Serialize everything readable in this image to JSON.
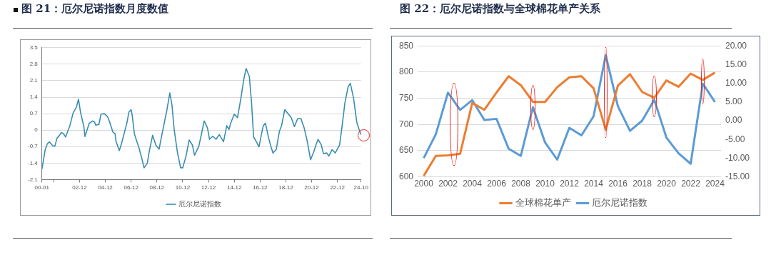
{
  "chart_data": [
    {
      "type": "line",
      "title": "图 21：厄尔尼诺指数月度数值",
      "x": [
        "2000-01",
        "2000-04",
        "2000-06",
        "2000-08",
        "2000-11",
        "2001-01",
        "2001-03",
        "2001-05",
        "2001-07",
        "2001-09",
        "2001-11",
        "2002-01",
        "2002-03",
        "2002-06",
        "2002-09",
        "2002-11",
        "2003-01",
        "2003-04",
        "2003-05",
        "2003-08",
        "2003-09",
        "2003-12",
        "2004-02",
        "2004-03",
        "2004-06",
        "2004-08",
        "2004-11",
        "2005-02",
        "2005-04",
        "2005-07",
        "2005-09",
        "2005-10",
        "2006-01",
        "2006-03",
        "2006-06",
        "2006-08",
        "2006-10",
        "2006-12",
        "2007-01",
        "2007-03",
        "2007-05",
        "2007-07",
        "2007-10",
        "2007-12",
        "2008-03",
        "2008-05",
        "2008-08",
        "2008-11",
        "2009-02",
        "2009-04",
        "2009-07",
        "2009-09",
        "2009-12",
        "2010-02",
        "2010-04",
        "2010-07",
        "2010-10",
        "2010-12",
        "2011-03",
        "2011-06",
        "2011-09",
        "2011-11",
        "2012-03",
        "2012-05",
        "2012-08",
        "2012-11",
        "2013-01",
        "2013-04",
        "2013-07",
        "2013-10",
        "2014-02",
        "2014-05",
        "2014-07",
        "2014-09",
        "2014-12",
        "2015-03",
        "2015-06",
        "2015-09",
        "2015-11",
        "2016-02",
        "2016-04",
        "2016-06",
        "2016-09",
        "2016-11",
        "2017-01",
        "2017-03",
        "2017-05",
        "2017-08",
        "2017-10",
        "2017-12",
        "2018-03",
        "2018-06",
        "2018-08",
        "2018-11",
        "2019-02",
        "2019-05",
        "2019-08",
        "2019-11",
        "2020-02",
        "2020-05",
        "2020-08",
        "2020-11",
        "2021-02",
        "2021-04",
        "2021-06",
        "2021-09",
        "2021-11",
        "2022-02",
        "2022-04",
        "2022-07",
        "2022-10",
        "2023-02",
        "2023-04",
        "2023-07",
        "2023-10",
        "2023-12",
        "2024-03",
        "2024-06",
        "2024-08",
        "2024-10"
      ],
      "series": [
        {
          "name": "厄尔尼诺指数",
          "color": "#3a8db0",
          "values": [
            -1.65,
            -0.83,
            -0.58,
            -0.5,
            -0.66,
            -0.68,
            -0.34,
            -0.24,
            -0.1,
            -0.15,
            -0.29,
            -0.05,
            0.19,
            0.73,
            0.97,
            1.31,
            0.73,
            0.15,
            -0.27,
            0.15,
            0.29,
            0.39,
            0.34,
            0.21,
            0.24,
            0.68,
            0.7,
            0.58,
            0.34,
            -0.08,
            -0.15,
            -0.49,
            -0.87,
            -0.58,
            -0.05,
            0.29,
            0.78,
            0.87,
            0.63,
            -0.15,
            -0.44,
            -0.71,
            -1.21,
            -1.6,
            -1.41,
            -0.87,
            -0.22,
            -0.63,
            -0.81,
            -0.34,
            0.34,
            0.78,
            1.58,
            1.07,
            0.05,
            -0.92,
            -1.6,
            -1.6,
            -1.12,
            -0.42,
            -0.63,
            -1.07,
            -0.68,
            -0.26,
            0.39,
            0.1,
            -0.39,
            -0.26,
            -0.39,
            -0.19,
            -0.49,
            0.19,
            0.03,
            0.34,
            0.68,
            0.53,
            1.31,
            2.19,
            2.62,
            2.28,
            1.21,
            -0.29,
            -0.53,
            -0.71,
            -0.24,
            0.19,
            0.29,
            -0.34,
            -0.68,
            -0.97,
            -0.83,
            -0.05,
            0.19,
            0.87,
            0.7,
            0.53,
            0.15,
            0.49,
            0.49,
            0.1,
            -0.49,
            -1.26,
            -0.92,
            -0.63,
            -0.39,
            -0.63,
            -1.0,
            -0.97,
            -1.1,
            -0.83,
            -0.97,
            -0.63,
            0.05,
            1.17,
            1.85,
            1.99,
            1.36,
            0.34,
            0.05,
            -0.2
          ]
        }
      ],
      "xlim": [
        "2000-01",
        "2024-10"
      ],
      "xticks": [
        {
          "value": "2000-01",
          "label": "00-01"
        },
        {
          "value": "2000-12",
          "label": null
        },
        {
          "value": "2002-12",
          "label": "02-12"
        },
        {
          "value": "2004-12",
          "label": "04-12"
        },
        {
          "value": "2006-12",
          "label": "06-12"
        },
        {
          "value": "2008-12",
          "label": "08-12"
        },
        {
          "value": "2010-12",
          "label": "10-12"
        },
        {
          "value": "2012-12",
          "label": "12-12"
        },
        {
          "value": "2014-12",
          "label": "14-12"
        },
        {
          "value": "2016-12",
          "label": "16-12"
        },
        {
          "value": "2018-12",
          "label": "18-12"
        },
        {
          "value": "2020-12",
          "label": "20-12"
        },
        {
          "value": "2022-12",
          "label": "22-12"
        },
        {
          "value": "2024-10",
          "label": "24-10"
        }
      ],
      "ylim": [
        -2.1,
        3.5
      ],
      "yticks": [
        -2.1,
        -1.4,
        -0.7,
        0,
        0.7,
        1.4,
        2.1,
        2.8,
        3.5
      ],
      "grid": "y",
      "legend": "bottom"
    },
    {
      "type": "line",
      "title": "图 22：厄尔尼诺指数与全球棉花单产关系",
      "categories": [
        "2000",
        null,
        "2002",
        null,
        "2004",
        null,
        "2006",
        null,
        "2008",
        null,
        "2010",
        null,
        "2012",
        null,
        "2014",
        null,
        "2016",
        null,
        "2018",
        null,
        "2020",
        null,
        "2022",
        null,
        "2024"
      ],
      "series": [
        {
          "name": "全球棉花单产",
          "color": "#ed7d31",
          "axis": "y",
          "values": [
            602,
            640,
            641,
            644,
            741,
            728,
            761,
            792,
            775,
            743,
            743,
            771,
            790,
            792,
            769,
            690,
            774,
            796,
            762,
            751,
            784,
            772,
            797,
            785,
            799
          ]
        },
        {
          "name": "厄尔尼诺指数",
          "color": "#5b9bd5",
          "axis": "y2",
          "values": [
            -10.0,
            -3.6,
            7.5,
            2.9,
            5.5,
            0.2,
            0.5,
            -7.5,
            -9.4,
            3.6,
            -5.8,
            -10.4,
            -1.9,
            -3.9,
            1.2,
            17.5,
            3.9,
            -2.7,
            0.0,
            5.6,
            -4.5,
            -8.7,
            -11.5,
            9.9,
            5.0
          ]
        }
      ],
      "ylim": [
        600,
        850
      ],
      "yticks": [
        600,
        650,
        700,
        750,
        800,
        850
      ],
      "y2lim": [
        -15,
        20
      ],
      "y2ticks": [
        {
          "value": -15,
          "label": "-15.00"
        },
        {
          "value": -10,
          "label": "-10.00"
        },
        {
          "value": -5,
          "label": "-5.00"
        },
        {
          "value": 0,
          "label": "0.00"
        },
        {
          "value": 5,
          "label": "5.00"
        },
        {
          "value": 10,
          "label": "10.00"
        },
        {
          "value": 15,
          "label": "15.00"
        },
        {
          "value": 20,
          "label": "20.00"
        }
      ],
      "grid": "y",
      "legend": "bottom"
    }
  ]
}
